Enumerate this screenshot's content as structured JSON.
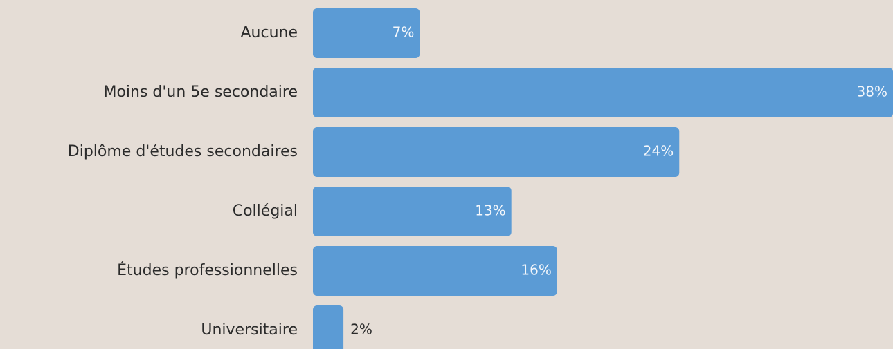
{
  "chart_data": {
    "type": "bar",
    "orientation": "horizontal",
    "categories": [
      "Aucune",
      "Moins d'un 5e secondaire",
      "Diplôme d'études secondaires",
      "Collégial",
      "Études professionnelles",
      "Universitaire"
    ],
    "values": [
      7,
      38,
      24,
      13,
      16,
      2
    ],
    "value_labels": [
      "7%",
      "38%",
      "24%",
      "13%",
      "16%",
      "2%"
    ],
    "unit": "%",
    "xlim": [
      0,
      38
    ],
    "title": "",
    "xlabel": "",
    "ylabel": "",
    "grid": false,
    "legend": "none",
    "colors": {
      "bar": "#5b9bd5",
      "background": "#e5ddd6",
      "label_inside": "#f4f7fb",
      "label_outside": "#2b2b2b",
      "category_text": "#2b2b2b"
    }
  }
}
